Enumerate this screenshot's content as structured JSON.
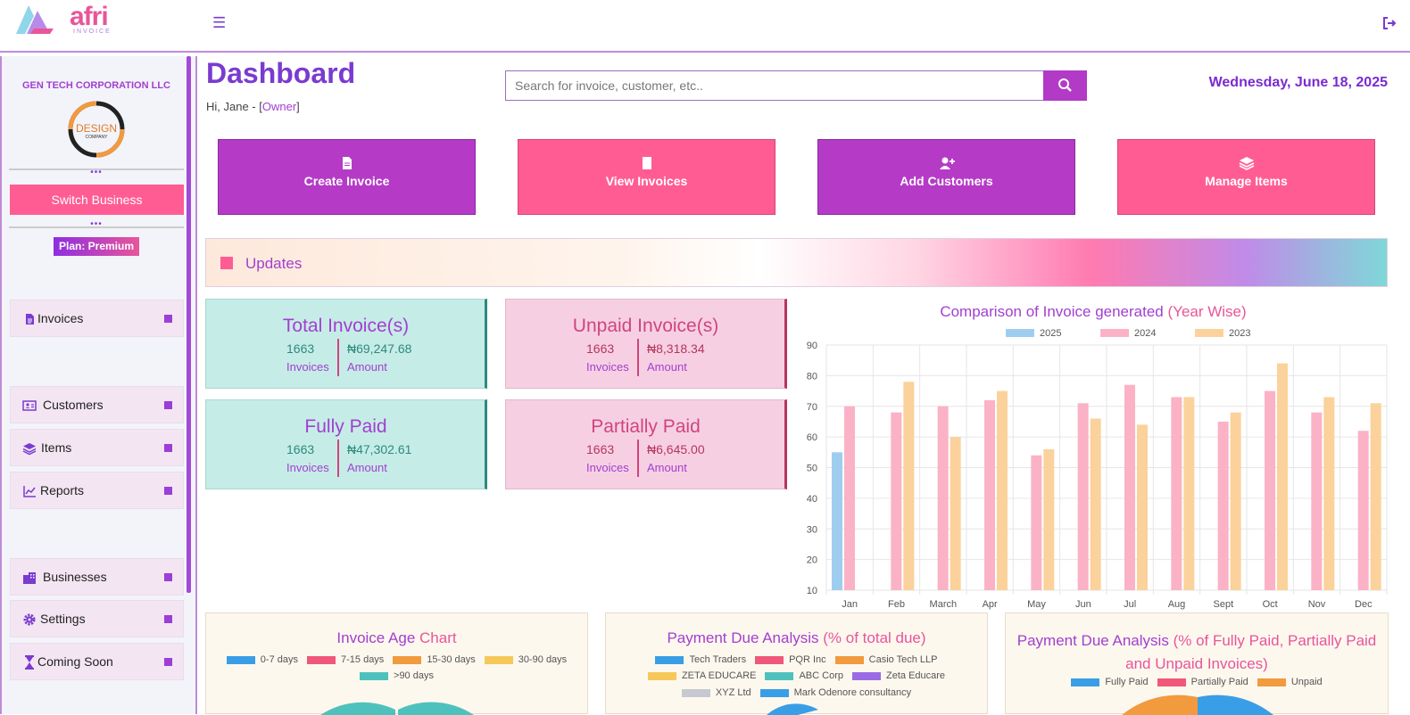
{
  "header": {
    "logo_text": "afri",
    "logo_sub": "INVOICE",
    "menu_icon": "hamburger-icon",
    "logout_icon": "logout-icon"
  },
  "sidebar": {
    "company_name": "GEN TECH CORPORATION LLC",
    "company_logo_text": "DESIGN",
    "company_logo_sub": "COMPANY",
    "switch_label": "Switch Business",
    "plan_label": "Plan: Premium",
    "items": [
      {
        "label": "Invoices",
        "icon": "document-icon"
      },
      {
        "label": "Customers",
        "icon": "id-card-icon"
      },
      {
        "label": "Items",
        "icon": "layers-icon"
      },
      {
        "label": "Reports",
        "icon": "line-chart-icon"
      },
      {
        "label": "Businesses",
        "icon": "building-icon"
      },
      {
        "label": "Settings",
        "icon": "gear-icon"
      },
      {
        "label": "Coming Soon",
        "icon": "hourglass-icon"
      }
    ]
  },
  "main": {
    "title": "Dashboard",
    "greeting_prefix": "Hi, Jane - [",
    "greeting_role": "Owner",
    "greeting_suffix": "]",
    "search_placeholder": "Search for invoice, customer, etc..",
    "date": "Wednesday, June 18, 2025",
    "actions": [
      {
        "label": "Create Invoice",
        "icon": "file-icon",
        "color": "#b53bc7"
      },
      {
        "label": "View Invoices",
        "icon": "file-blank-icon",
        "color": "#ff5c94"
      },
      {
        "label": "Add Customers",
        "icon": "user-plus-icon",
        "color": "#b53bc7"
      },
      {
        "label": "Manage Items",
        "icon": "layers-icon",
        "color": "#ff5c94"
      }
    ],
    "updates_label": "Updates",
    "stats": [
      {
        "title": "Total Invoice(s)",
        "count": "1663",
        "amount": "₦69,247.68",
        "count_label": "Invoices",
        "amount_label": "Amount"
      },
      {
        "title": "Unpaid Invoice(s)",
        "count": "1663",
        "amount": "₦8,318.34",
        "count_label": "Invoices",
        "amount_label": "Amount"
      },
      {
        "title": "Fully Paid",
        "count": "1663",
        "amount": "₦47,302.61",
        "count_label": "Invoices",
        "amount_label": "Amount"
      },
      {
        "title": "Partially Paid",
        "count": "1663",
        "amount": "₦6,645.00",
        "count_label": "Invoices",
        "amount_label": "Amount"
      }
    ]
  },
  "chart_data": [
    {
      "type": "bar",
      "title": "Comparison of Invoice generated",
      "title_accent": "(Year Wise)",
      "categories": [
        "Jan",
        "Feb",
        "March",
        "Apr",
        "May",
        "Jun",
        "Jul",
        "Aug",
        "Sept",
        "Oct",
        "Nov",
        "Dec"
      ],
      "series": [
        {
          "name": "2025",
          "color": "#9fcdf0",
          "values": [
            55,
            null,
            null,
            null,
            null,
            null,
            null,
            null,
            null,
            null,
            null,
            null
          ]
        },
        {
          "name": "2024",
          "color": "#fbb2c6",
          "values": [
            70,
            68,
            70,
            72,
            54,
            71,
            77,
            73,
            65,
            75,
            68,
            62
          ]
        },
        {
          "name": "2023",
          "color": "#fbd29b",
          "values": [
            null,
            78,
            60,
            75,
            56,
            66,
            64,
            73,
            68,
            84,
            73,
            71
          ]
        }
      ],
      "ylim": [
        10,
        90
      ],
      "yticks": [
        10,
        20,
        30,
        40,
        50,
        60,
        70,
        80,
        90
      ],
      "legend": "top",
      "grid": true
    },
    {
      "type": "pie",
      "title": "Invoice Age",
      "title_accent": "Chart",
      "legend": [
        {
          "name": "0-7 days",
          "color": "#3a9ee6"
        },
        {
          "name": "7-15 days",
          "color": "#f0587a"
        },
        {
          "name": "15-30 days",
          "color": "#f29a3e"
        },
        {
          "name": "30-90 days",
          "color": "#f6c85a"
        },
        {
          "name": ">90 days",
          "color": "#4fc1bd"
        }
      ]
    },
    {
      "type": "pie",
      "title": "Payment Due Analysis",
      "title_accent": "(% of total due)",
      "legend": [
        {
          "name": "Tech Traders",
          "color": "#3a9ee6"
        },
        {
          "name": "PQR Inc",
          "color": "#f0587a"
        },
        {
          "name": "Casio Tech LLP",
          "color": "#f29a3e"
        },
        {
          "name": "ZETA EDUCARE",
          "color": "#f6c85a"
        },
        {
          "name": "ABC Corp",
          "color": "#4fc1bd"
        },
        {
          "name": "Zeta Educare",
          "color": "#9b6be6"
        },
        {
          "name": "XYZ Ltd",
          "color": "#c6c9cf"
        },
        {
          "name": "Mark Odenore consultancy",
          "color": "#3a9ee6"
        }
      ]
    },
    {
      "type": "pie",
      "title": "Payment Due Analysis",
      "title_accent": "(% of Fully Paid, Partially Paid and Unpaid Invoices)",
      "legend": [
        {
          "name": "Fully Paid",
          "color": "#3a9ee6"
        },
        {
          "name": "Partially Paid",
          "color": "#f0587a"
        },
        {
          "name": "Unpaid",
          "color": "#f29a3e"
        }
      ]
    }
  ]
}
